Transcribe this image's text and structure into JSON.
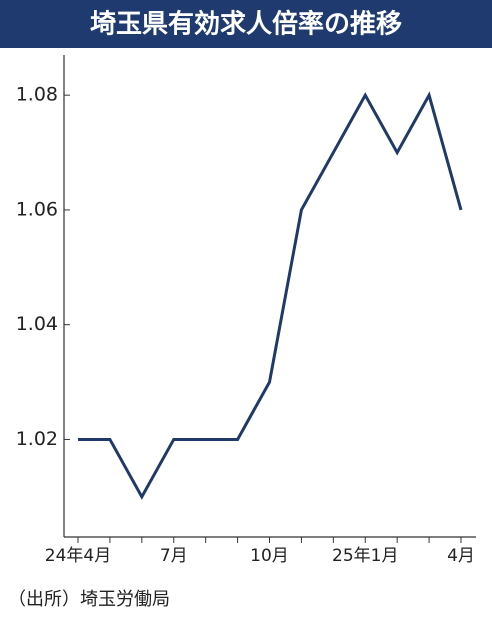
{
  "chart_data": {
    "type": "line",
    "title": "埼玉県有効求人倍率の推移",
    "categories": [
      "24年4月",
      null,
      null,
      "7月",
      null,
      null,
      "10月",
      null,
      null,
      "25年1月",
      null,
      null,
      "4月"
    ],
    "values": [
      1.02,
      1.02,
      1.01,
      1.02,
      1.02,
      1.02,
      1.03,
      1.06,
      1.07,
      1.08,
      1.07,
      1.08,
      1.06
    ],
    "color": "#1f3a68",
    "ylim": [
      1.003,
      1.087
    ],
    "yticks": [
      1.02,
      1.04,
      1.06,
      1.08
    ],
    "source": "（出所）埼玉労働局"
  }
}
